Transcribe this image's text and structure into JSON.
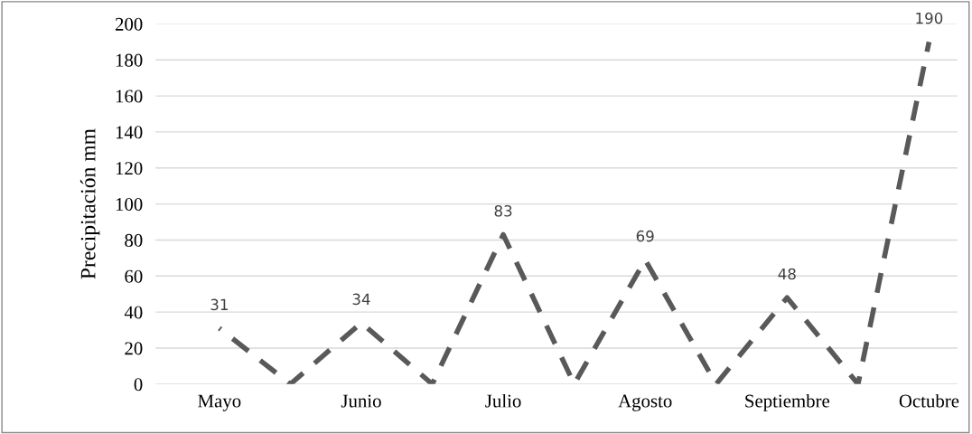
{
  "chart_data": {
    "type": "line",
    "ylabel": "Precipitación mm",
    "categories": [
      "Mayo",
      null,
      "Junio",
      null,
      "Julio",
      null,
      "Agosto",
      null,
      "Septiembre",
      null,
      "Octubre"
    ],
    "series": [
      {
        "color": "#595959",
        "values": [
          31,
          0,
          34,
          0,
          83,
          0,
          69,
          0,
          48,
          0,
          190
        ],
        "value_labels": [
          "31",
          null,
          "34",
          null,
          "83",
          null,
          "69",
          null,
          "48",
          null,
          "190"
        ]
      }
    ],
    "ylim": [
      0,
      200
    ],
    "yticks": [
      0,
      20,
      40,
      60,
      80,
      100,
      120,
      140,
      160,
      180,
      200
    ],
    "grid": "y",
    "line_style": "dashed",
    "marker": "none",
    "legend": false
  }
}
